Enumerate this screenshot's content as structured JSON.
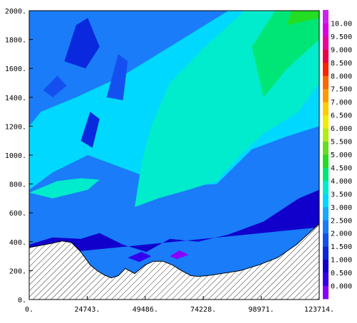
{
  "chart_data": {
    "type": "heatmap",
    "title": "",
    "xlabel": "",
    "ylabel": "",
    "x_ticks": [
      "0.",
      "24743.",
      "49486.",
      "74228.",
      "98971.",
      "123714."
    ],
    "x_tick_values": [
      0,
      24743,
      49486,
      74228,
      98971,
      123714
    ],
    "y_ticks": [
      "0.",
      "200.",
      "400.",
      "600.",
      "800.",
      "1000.",
      "1200.",
      "1400.",
      "1600.",
      "1800.",
      "2000."
    ],
    "y_tick_values": [
      0,
      200,
      400,
      600,
      800,
      1000,
      1200,
      1400,
      1600,
      1800,
      2000
    ],
    "xlim": [
      0,
      123714
    ],
    "ylim": [
      0,
      2000
    ],
    "colorbar": {
      "labels": [
        "0.000",
        "0.500",
        "1.000",
        "1.500",
        "2.000",
        "2.500",
        "3.000",
        "3.500",
        "4.000",
        "4.500",
        "5.000",
        "5.500",
        "6.000",
        "6.500",
        "7.000",
        "7.500",
        "8.000",
        "8.500",
        "9.000",
        "9.500",
        "10.00"
      ],
      "colors": [
        "#8800ff",
        "#3300ee",
        "#1100cc",
        "#0a28dd",
        "#1450f0",
        "#1a7cf8",
        "#18a8ff",
        "#00d8ff",
        "#00eccc",
        "#00e676",
        "#22dd22",
        "#66dd22",
        "#b2ee10",
        "#eeee00",
        "#ffcc00",
        "#ff9900",
        "#ff6600",
        "#ff2200",
        "#ee0044",
        "#ee0099",
        "#dd00dd",
        "#cc22ee"
      ]
    },
    "terrain": {
      "x": [
        0,
        5000,
        10000,
        14000,
        18000,
        22000,
        26000,
        29000,
        32000,
        35000,
        38000,
        41000,
        45000,
        49500,
        53000,
        57000,
        61000,
        65000,
        69000,
        72000,
        76000,
        82000,
        90000,
        98000,
        106000,
        114000,
        120000,
        123714
      ],
      "y": [
        360,
        375,
        390,
        405,
        395,
        330,
        240,
        200,
        170,
        150,
        165,
        215,
        180,
        240,
        265,
        265,
        240,
        200,
        165,
        160,
        165,
        180,
        200,
        240,
        290,
        380,
        470,
        525
      ]
    },
    "fields": [
      {
        "level": 2.5,
        "points": [
          [
            0,
            600
          ],
          [
            15000,
            800
          ],
          [
            30000,
            640
          ],
          [
            45000,
            560
          ],
          [
            60000,
            640
          ],
          [
            75000,
            560
          ],
          [
            95000,
            820
          ],
          [
            110000,
            1050
          ],
          [
            123714,
            1080
          ],
          [
            123714,
            2000
          ],
          [
            0,
            2000
          ]
        ]
      },
      {
        "level": 3.75,
        "points": [
          [
            0,
            760
          ],
          [
            10000,
            880
          ],
          [
            25000,
            1000
          ],
          [
            45000,
            880
          ],
          [
            60000,
            780
          ],
          [
            80000,
            800
          ],
          [
            95000,
            1040
          ],
          [
            110000,
            1130
          ],
          [
            123714,
            1200
          ],
          [
            123714,
            2000
          ],
          [
            85000,
            2000
          ],
          [
            70000,
            1850
          ],
          [
            55000,
            1700
          ],
          [
            40000,
            1550
          ],
          [
            20000,
            1400
          ],
          [
            5000,
            1300
          ],
          [
            0,
            1200
          ]
        ]
      },
      {
        "level": 4.25,
        "points": [
          [
            0,
            740
          ],
          [
            12000,
            820
          ],
          [
            22000,
            840
          ],
          [
            30000,
            830
          ],
          [
            25000,
            760
          ],
          [
            10000,
            700
          ]
        ]
      },
      {
        "level": 4.25,
        "points": [
          [
            45000,
            640
          ],
          [
            55000,
            700
          ],
          [
            68000,
            760
          ],
          [
            80000,
            820
          ],
          [
            90000,
            1000
          ],
          [
            100000,
            1150
          ],
          [
            115000,
            1300
          ],
          [
            123714,
            1500
          ],
          [
            123714,
            2000
          ],
          [
            92000,
            2000
          ],
          [
            75000,
            1750
          ],
          [
            60000,
            1500
          ],
          [
            52000,
            1200
          ],
          [
            48000,
            950
          ]
        ]
      },
      {
        "level": 4.75,
        "points": [
          [
            100000,
            1400
          ],
          [
            110000,
            1600
          ],
          [
            123714,
            1800
          ],
          [
            123714,
            2000
          ],
          [
            105000,
            2000
          ],
          [
            95000,
            1750
          ]
        ]
      },
      {
        "level": 5.25,
        "points": [
          [
            110000,
            1900
          ],
          [
            123714,
            1950
          ],
          [
            123714,
            2000
          ],
          [
            112000,
            2000
          ]
        ]
      },
      {
        "level": 1.25,
        "points": [
          [
            0,
            380
          ],
          [
            10000,
            430
          ],
          [
            22000,
            420
          ],
          [
            30000,
            460
          ],
          [
            40000,
            380
          ],
          [
            50000,
            330
          ],
          [
            60000,
            420
          ],
          [
            72000,
            400
          ],
          [
            85000,
            450
          ],
          [
            100000,
            540
          ],
          [
            115000,
            700
          ],
          [
            123714,
            760
          ],
          [
            123714,
            500
          ],
          [
            0,
            300
          ]
        ]
      },
      {
        "level": 0.75,
        "points": [
          [
            42000,
            290
          ],
          [
            48000,
            330
          ],
          [
            52000,
            300
          ],
          [
            47000,
            260
          ]
        ]
      },
      {
        "level": 0.25,
        "points": [
          [
            60000,
            300
          ],
          [
            64000,
            340
          ],
          [
            68000,
            310
          ],
          [
            63000,
            280
          ]
        ]
      },
      {
        "level": 1.75,
        "points": [
          [
            15000,
            1650
          ],
          [
            20000,
            1900
          ],
          [
            25000,
            1950
          ],
          [
            30000,
            1750
          ],
          [
            24000,
            1600
          ]
        ]
      },
      {
        "level": 1.75,
        "points": [
          [
            22000,
            1100
          ],
          [
            26000,
            1300
          ],
          [
            30000,
            1250
          ],
          [
            27000,
            1050
          ]
        ]
      },
      {
        "level": 2.25,
        "points": [
          [
            33000,
            1400
          ],
          [
            38000,
            1700
          ],
          [
            42000,
            1650
          ],
          [
            40000,
            1380
          ]
        ]
      },
      {
        "level": 2.25,
        "points": [
          [
            6000,
            1450
          ],
          [
            12000,
            1550
          ],
          [
            16000,
            1480
          ],
          [
            10000,
            1400
          ]
        ]
      }
    ]
  }
}
